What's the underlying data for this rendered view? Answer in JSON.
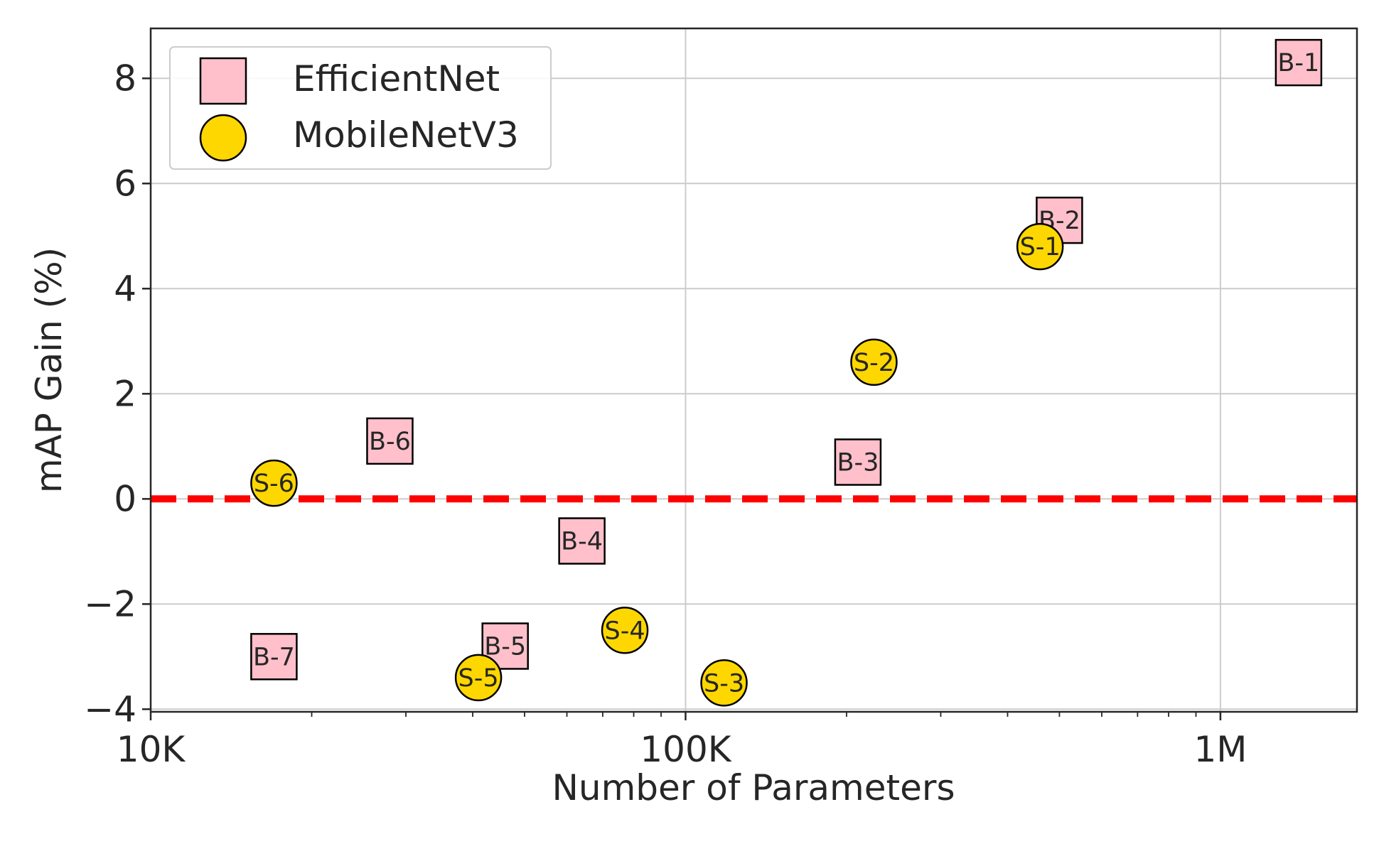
{
  "chart_data": {
    "type": "scatter",
    "xlabel": "Number of Parameters",
    "ylabel": "mAP Gain (%)",
    "x_scale": "log",
    "xlim": [
      10000,
      1800000
    ],
    "ylim": [
      -4.05,
      8.95
    ],
    "x_ticks": [
      {
        "value": 10000,
        "label": "10K"
      },
      {
        "value": 100000,
        "label": "100K"
      },
      {
        "value": 1000000,
        "label": "1M"
      }
    ],
    "y_ticks": [
      {
        "value": -4,
        "label": "−4"
      },
      {
        "value": -2,
        "label": "−2"
      },
      {
        "value": 0,
        "label": "0"
      },
      {
        "value": 2,
        "label": "2"
      },
      {
        "value": 4,
        "label": "4"
      },
      {
        "value": 6,
        "label": "6"
      },
      {
        "value": 8,
        "label": "8"
      }
    ],
    "grid": true,
    "legend_position": "top-left",
    "reference_line": {
      "y": 0,
      "color": "#ff0000",
      "style": "dashed"
    },
    "series": [
      {
        "name": "EfficientNet",
        "marker": "square",
        "color": "#ffc0cb",
        "points": [
          {
            "label": "B-1",
            "x": 1400000,
            "y": 8.3
          },
          {
            "label": "B-2",
            "x": 500000,
            "y": 5.3
          },
          {
            "label": "B-3",
            "x": 210000,
            "y": 0.7
          },
          {
            "label": "B-4",
            "x": 64000,
            "y": -0.8
          },
          {
            "label": "B-5",
            "x": 46000,
            "y": -2.8
          },
          {
            "label": "B-6",
            "x": 28000,
            "y": 1.1
          },
          {
            "label": "B-7",
            "x": 17000,
            "y": -3.0
          }
        ]
      },
      {
        "name": "MobileNetV3",
        "marker": "circle",
        "color": "#ffd700",
        "points": [
          {
            "label": "S-1",
            "x": 460000,
            "y": 4.8
          },
          {
            "label": "S-2",
            "x": 225000,
            "y": 2.6
          },
          {
            "label": "S-3",
            "x": 118000,
            "y": -3.5
          },
          {
            "label": "S-4",
            "x": 77000,
            "y": -2.5
          },
          {
            "label": "S-5",
            "x": 41000,
            "y": -3.4
          },
          {
            "label": "S-6",
            "x": 17000,
            "y": 0.3
          }
        ]
      }
    ]
  }
}
